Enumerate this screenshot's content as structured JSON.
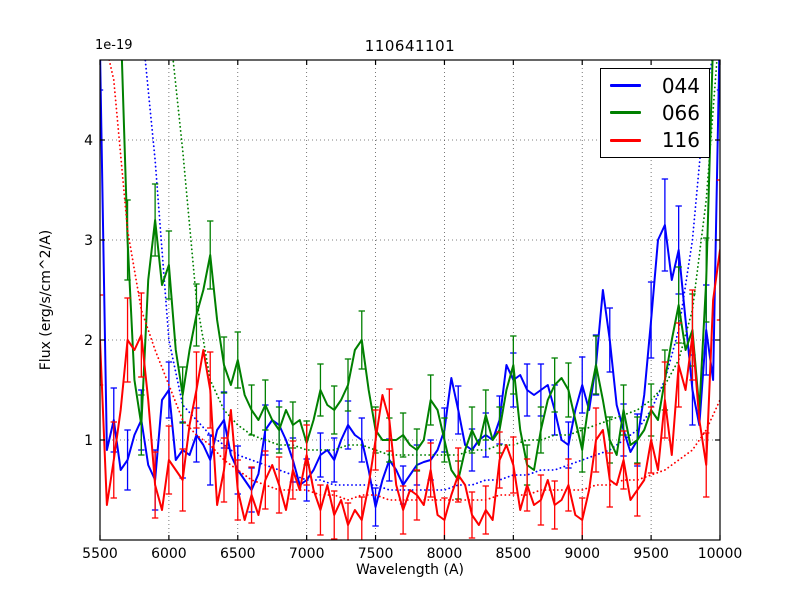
{
  "figure": {
    "title": "110641101",
    "offset_text": "1e-19",
    "xlabel": "Wavelength (A)",
    "ylabel": "Flux (erg/s/cm^2/A)",
    "background_color": "#ffffff",
    "axes_edge_color": "#000000",
    "grid_color": "#444444"
  },
  "legend": {
    "position": "upper right",
    "entries": [
      {
        "label": "044",
        "color": "#0000ff"
      },
      {
        "label": "066",
        "color": "#008000"
      },
      {
        "label": "116",
        "color": "#ff0000"
      }
    ]
  },
  "chart_data": {
    "type": "line",
    "title": "110641101",
    "xlabel": "Wavelength (A)",
    "ylabel": "Flux (erg/s/cm^2/A)",
    "y_offset_factor": "1e-19",
    "xlim": [
      5500,
      10000
    ],
    "ylim": [
      0,
      4.8
    ],
    "xticks": [
      5500,
      6000,
      6500,
      7000,
      7500,
      8000,
      8500,
      9000,
      9500,
      10000
    ],
    "yticks": [
      1,
      2,
      3,
      4
    ],
    "grid": true,
    "legend_position": "upper right",
    "x_start": 5500,
    "x_step": 50,
    "series": [
      {
        "name": "044",
        "color": "#0000ff",
        "style": "solid-with-errorbars",
        "values": [
          4.9,
          0.9,
          1.2,
          0.7,
          0.8,
          1.05,
          1.2,
          0.75,
          0.6,
          1.4,
          1.5,
          0.8,
          0.9,
          0.85,
          1.05,
          0.95,
          0.8,
          1.1,
          1.2,
          0.85,
          0.7,
          0.6,
          0.5,
          0.66,
          1.1,
          1.2,
          1.15,
          1.0,
          0.8,
          0.55,
          0.6,
          0.7,
          0.85,
          0.9,
          0.8,
          1.0,
          1.15,
          1.05,
          1.0,
          0.7,
          0.33,
          0.6,
          0.8,
          0.7,
          0.55,
          0.65,
          0.75,
          0.78,
          0.8,
          0.9,
          1.1,
          1.62,
          1.3,
          0.95,
          0.9,
          1.0,
          1.05,
          1.0,
          1.2,
          1.75,
          1.6,
          1.65,
          1.5,
          1.45,
          1.5,
          1.55,
          1.3,
          1.0,
          0.95,
          1.3,
          1.55,
          1.3,
          1.75,
          2.5,
          2.0,
          1.35,
          1.1,
          0.88,
          1.0,
          1.45,
          2.2,
          3.0,
          3.15,
          2.6,
          2.9,
          2.2,
          1.5,
          1.15,
          2.1,
          1.6,
          5.2
        ],
        "errors": [
          0.4,
          0.3,
          0.32,
          0.28,
          0.3,
          0.33,
          0.3,
          0.28,
          0.3,
          0.3,
          0.28,
          0.26,
          0.28,
          0.25,
          0.27,
          0.26,
          0.25,
          0.27,
          0.28,
          0.25,
          0.24,
          0.22,
          0.22,
          0.23,
          0.25,
          0.25,
          0.24,
          0.23,
          0.22,
          0.21,
          0.21,
          0.22,
          0.22,
          0.23,
          0.22,
          0.23,
          0.24,
          0.23,
          0.22,
          0.2,
          0.19,
          0.2,
          0.21,
          0.2,
          0.19,
          0.2,
          0.2,
          0.2,
          0.2,
          0.21,
          0.22,
          0.26,
          0.24,
          0.22,
          0.21,
          0.22,
          0.22,
          0.22,
          0.24,
          0.28,
          0.27,
          0.27,
          0.26,
          0.26,
          0.26,
          0.27,
          0.25,
          0.23,
          0.23,
          0.26,
          0.28,
          0.27,
          0.3,
          0.35,
          0.32,
          0.28,
          0.26,
          0.25,
          0.26,
          0.3,
          0.38,
          0.45,
          0.46,
          0.42,
          0.44,
          0.4,
          0.35,
          0.32,
          0.45,
          0.5,
          0.7
        ]
      },
      {
        "name": "066",
        "color": "#008000",
        "style": "solid-with-errorbars",
        "values": [
          6.5,
          6.2,
          5.8,
          5.2,
          3.0,
          1.6,
          1.15,
          2.6,
          3.2,
          2.55,
          2.75,
          1.9,
          1.45,
          1.9,
          2.25,
          2.5,
          2.85,
          2.2,
          1.75,
          1.55,
          1.8,
          1.45,
          1.3,
          1.2,
          1.35,
          1.2,
          1.1,
          1.3,
          1.15,
          1.2,
          0.97,
          1.2,
          1.5,
          1.35,
          1.3,
          1.4,
          1.55,
          1.9,
          2.0,
          1.5,
          1.1,
          1.0,
          1.0,
          1.0,
          1.05,
          0.95,
          0.9,
          1.0,
          1.4,
          1.3,
          1.0,
          0.7,
          0.6,
          0.9,
          1.1,
          0.95,
          1.25,
          1.0,
          1.1,
          1.5,
          1.75,
          1.1,
          0.75,
          0.7,
          1.1,
          1.4,
          1.55,
          1.62,
          1.5,
          1.2,
          0.9,
          1.4,
          1.75,
          1.4,
          1.0,
          0.85,
          1.3,
          0.95,
          1.0,
          1.1,
          1.3,
          1.2,
          1.6,
          2.0,
          2.35,
          1.9,
          2.1,
          1.3,
          2.6,
          5.0,
          6.5
        ],
        "errors": [
          0.5,
          0.5,
          0.5,
          0.45,
          0.4,
          0.32,
          0.3,
          0.34,
          0.36,
          0.33,
          0.34,
          0.3,
          0.28,
          0.3,
          0.31,
          0.32,
          0.34,
          0.3,
          0.28,
          0.27,
          0.28,
          0.26,
          0.25,
          0.24,
          0.25,
          0.24,
          0.23,
          0.25,
          0.23,
          0.24,
          0.22,
          0.24,
          0.26,
          0.25,
          0.24,
          0.25,
          0.26,
          0.28,
          0.29,
          0.26,
          0.23,
          0.22,
          0.22,
          0.22,
          0.22,
          0.21,
          0.21,
          0.22,
          0.25,
          0.24,
          0.22,
          0.2,
          0.19,
          0.22,
          0.23,
          0.22,
          0.25,
          0.22,
          0.23,
          0.27,
          0.29,
          0.23,
          0.2,
          0.2,
          0.23,
          0.26,
          0.27,
          0.28,
          0.27,
          0.24,
          0.22,
          0.26,
          0.29,
          0.26,
          0.23,
          0.22,
          0.25,
          0.22,
          0.23,
          0.24,
          0.26,
          0.25,
          0.3,
          0.34,
          0.38,
          0.34,
          0.36,
          0.3,
          0.42,
          0.55,
          0.6
        ]
      },
      {
        "name": "116",
        "color": "#ff0000",
        "style": "solid-with-errorbars",
        "values": [
          2.0,
          0.35,
          0.8,
          1.3,
          2.0,
          1.9,
          2.05,
          1.4,
          0.55,
          0.3,
          0.8,
          0.7,
          0.6,
          1.15,
          1.5,
          1.9,
          1.5,
          0.35,
          0.7,
          1.3,
          0.5,
          0.2,
          0.45,
          0.25,
          0.6,
          0.75,
          0.55,
          0.3,
          0.7,
          0.5,
          0.85,
          0.5,
          0.3,
          0.55,
          0.25,
          0.4,
          0.15,
          0.3,
          0.2,
          0.55,
          1.0,
          1.45,
          1.2,
          0.55,
          0.3,
          0.5,
          0.45,
          0.35,
          0.7,
          0.25,
          0.2,
          0.45,
          0.65,
          0.55,
          0.25,
          0.15,
          0.3,
          0.2,
          0.8,
          0.95,
          0.75,
          0.3,
          0.55,
          0.35,
          0.4,
          0.6,
          0.35,
          0.4,
          0.55,
          0.25,
          0.2,
          0.5,
          1.0,
          1.1,
          0.6,
          0.55,
          0.8,
          0.4,
          0.5,
          0.6,
          1.0,
          0.7,
          1.4,
          0.85,
          1.75,
          1.5,
          2.05,
          1.2,
          0.75,
          2.4,
          2.9
        ],
        "errors": [
          0.45,
          0.35,
          0.38,
          0.4,
          0.42,
          0.4,
          0.42,
          0.38,
          0.33,
          0.3,
          0.34,
          0.32,
          0.31,
          0.36,
          0.38,
          0.4,
          0.38,
          0.3,
          0.32,
          0.36,
          0.3,
          0.26,
          0.28,
          0.26,
          0.29,
          0.3,
          0.28,
          0.26,
          0.29,
          0.27,
          0.3,
          0.27,
          0.25,
          0.27,
          0.24,
          0.26,
          0.22,
          0.24,
          0.23,
          0.26,
          0.3,
          0.33,
          0.31,
          0.26,
          0.24,
          0.26,
          0.25,
          0.24,
          0.27,
          0.23,
          0.22,
          0.25,
          0.27,
          0.26,
          0.23,
          0.21,
          0.24,
          0.22,
          0.28,
          0.3,
          0.28,
          0.24,
          0.26,
          0.24,
          0.25,
          0.27,
          0.24,
          0.25,
          0.26,
          0.22,
          0.22,
          0.26,
          0.32,
          0.33,
          0.27,
          0.26,
          0.29,
          0.25,
          0.26,
          0.28,
          0.33,
          0.29,
          0.38,
          0.32,
          0.42,
          0.4,
          0.45,
          0.38,
          0.32,
          0.6,
          0.7
        ]
      }
    ],
    "noise_curves": [
      {
        "name": "044-noise",
        "color": "#0000ff",
        "style": "dotted",
        "x_start": 5500,
        "x_step": 100,
        "values": [
          8,
          7.5,
          7,
          6.2,
          3.8,
          2.0,
          1.35,
          1.2,
          1.05,
          0.95,
          0.85,
          0.8,
          0.75,
          0.7,
          0.65,
          0.6,
          0.6,
          0.55,
          0.55,
          0.55,
          0.55,
          0.5,
          0.5,
          0.5,
          0.5,
          0.5,
          0.55,
          0.55,
          0.6,
          0.6,
          0.65,
          0.65,
          0.7,
          0.7,
          0.75,
          0.8,
          0.85,
          0.9,
          1.0,
          1.1,
          1.3,
          1.6,
          2.1,
          3.0,
          4.5,
          7
        ]
      },
      {
        "name": "066-noise",
        "color": "#008000",
        "style": "dotted",
        "x_start": 5500,
        "x_step": 100,
        "values": [
          9,
          8.5,
          8,
          7.5,
          6.8,
          5.5,
          3.9,
          2.4,
          1.6,
          1.3,
          1.15,
          1.05,
          1.0,
          0.95,
          0.95,
          0.9,
          0.9,
          0.9,
          0.95,
          0.95,
          0.9,
          0.85,
          0.85,
          0.85,
          0.85,
          0.85,
          0.85,
          0.9,
          0.9,
          0.95,
          0.95,
          1.0,
          1.0,
          1.05,
          1.05,
          1.1,
          1.15,
          1.2,
          1.25,
          1.3,
          1.4,
          1.55,
          1.8,
          2.3,
          3.4,
          5.5
        ]
      },
      {
        "name": "116-noise",
        "color": "#ff0000",
        "style": "dotted",
        "x_start": 5500,
        "x_step": 100,
        "values": [
          7,
          4.6,
          3.1,
          2.3,
          1.9,
          1.55,
          1.2,
          1.05,
          0.95,
          0.8,
          0.7,
          0.6,
          0.55,
          0.5,
          0.5,
          0.5,
          0.45,
          0.45,
          0.4,
          0.45,
          0.45,
          0.4,
          0.4,
          0.4,
          0.4,
          0.4,
          0.4,
          0.4,
          0.4,
          0.45,
          0.45,
          0.45,
          0.5,
          0.5,
          0.5,
          0.5,
          0.55,
          0.55,
          0.6,
          0.6,
          0.65,
          0.7,
          0.8,
          0.9,
          1.1,
          1.4
        ]
      }
    ]
  }
}
